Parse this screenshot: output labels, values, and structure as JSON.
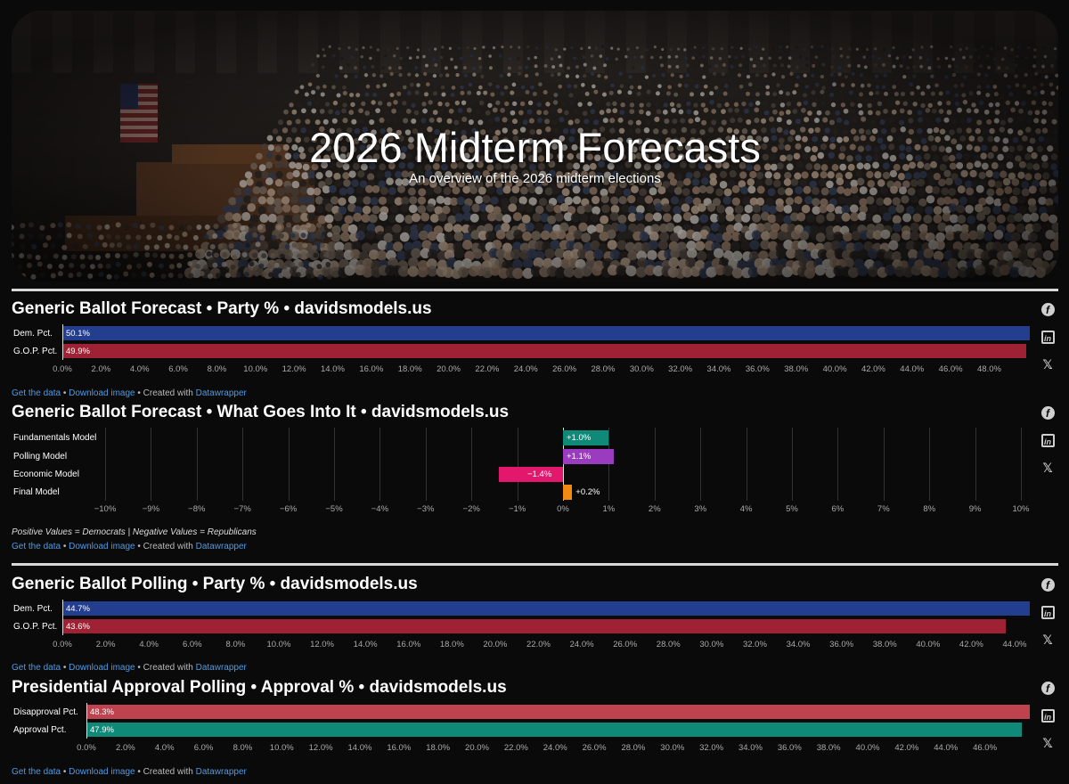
{
  "hero": {
    "title": "2026 Midterm Forecasts",
    "subtitle": "An overview of the 2026 midterm elections"
  },
  "footer": {
    "get_data": "Get the data",
    "download": "Download image",
    "created": "Created with",
    "datawrapper": "Datawrapper"
  },
  "social": {
    "facebook": "facebook-icon",
    "linkedin": "linkedin-icon",
    "x": "x-icon"
  },
  "chart_data": [
    {
      "type": "bar",
      "title": "Generic Ballot Forecast • Party % • davidsmodels.us",
      "categories": [
        "Dem. Pct.",
        "G.O.P. Pct."
      ],
      "values": [
        50.1,
        49.9
      ],
      "value_labels": [
        "50.1%",
        "49.9%"
      ],
      "colors": [
        "#233d8f",
        "#9e2234"
      ],
      "xlim": [
        0,
        50.1
      ],
      "ticks": [
        "0.0%",
        "2.0%",
        "4.0%",
        "6.0%",
        "8.0%",
        "10.0%",
        "12.0%",
        "14.0%",
        "16.0%",
        "18.0%",
        "20.0%",
        "22.0%",
        "24.0%",
        "26.0%",
        "28.0%",
        "30.0%",
        "32.0%",
        "34.0%",
        "36.0%",
        "38.0%",
        "40.0%",
        "42.0%",
        "44.0%",
        "46.0%",
        "48.0%"
      ]
    },
    {
      "type": "bar",
      "title": "Generic Ballot Forecast • What Goes Into It • davidsmodels.us",
      "categories": [
        "Fundamentals Model",
        "Polling Model",
        "Economic Model",
        "Final Model"
      ],
      "values": [
        1.0,
        1.1,
        -1.4,
        0.2
      ],
      "value_labels": [
        "+1.0%",
        "+1.1%",
        "−1.4%",
        "+0.2%"
      ],
      "colors": [
        "#0f8a78",
        "#9b3cc0",
        "#e3186d",
        "#f08a12"
      ],
      "xlim": [
        -10,
        10
      ],
      "ticks": [
        "−10%",
        "−9%",
        "−8%",
        "−7%",
        "−6%",
        "−5%",
        "−4%",
        "−3%",
        "−2%",
        "−1%",
        "0%",
        "1%",
        "2%",
        "3%",
        "4%",
        "5%",
        "6%",
        "7%",
        "8%",
        "9%",
        "10%"
      ],
      "note": "Positive Values = Democrats | Negative Values = Republicans",
      "grid": true
    },
    {
      "type": "bar",
      "title": "Generic Ballot Polling • Party % • davidsmodels.us",
      "categories": [
        "Dem. Pct.",
        "G.O.P. Pct."
      ],
      "values": [
        44.7,
        43.6
      ],
      "value_labels": [
        "44.7%",
        "43.6%"
      ],
      "colors": [
        "#233d8f",
        "#9e2234"
      ],
      "xlim": [
        0,
        44.7
      ],
      "ticks": [
        "0.0%",
        "2.0%",
        "4.0%",
        "6.0%",
        "8.0%",
        "10.0%",
        "12.0%",
        "14.0%",
        "16.0%",
        "18.0%",
        "20.0%",
        "22.0%",
        "24.0%",
        "26.0%",
        "28.0%",
        "30.0%",
        "32.0%",
        "34.0%",
        "36.0%",
        "38.0%",
        "40.0%",
        "42.0%",
        "44.0%"
      ]
    },
    {
      "type": "bar",
      "title": "Presidential Approval Polling • Approval % • davidsmodels.us",
      "categories": [
        "Disapproval Pct.",
        "Approval Pct."
      ],
      "values": [
        48.3,
        47.9
      ],
      "value_labels": [
        "48.3%",
        "47.9%"
      ],
      "colors": [
        "#bf434f",
        "#0f8a78"
      ],
      "xlim": [
        0,
        48.3
      ],
      "ticks": [
        "0.0%",
        "2.0%",
        "4.0%",
        "6.0%",
        "8.0%",
        "10.0%",
        "12.0%",
        "14.0%",
        "16.0%",
        "18.0%",
        "20.0%",
        "22.0%",
        "24.0%",
        "26.0%",
        "28.0%",
        "30.0%",
        "32.0%",
        "34.0%",
        "36.0%",
        "38.0%",
        "40.0%",
        "42.0%",
        "44.0%",
        "46.0%"
      ]
    }
  ]
}
